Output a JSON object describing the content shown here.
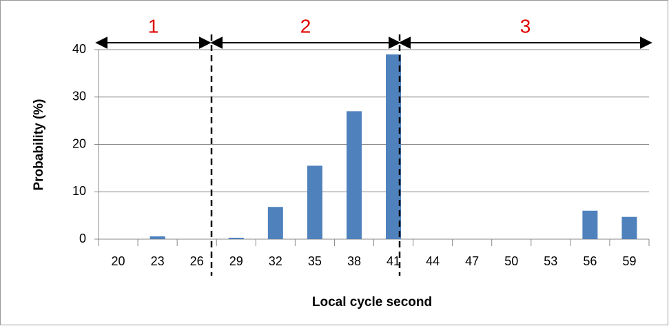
{
  "chart_data": {
    "type": "bar",
    "x_label": "Local cycle second",
    "y_label": "Probability (%)",
    "categories": [
      "20",
      "23",
      "26",
      "29",
      "32",
      "35",
      "38",
      "41",
      "44",
      "47",
      "50",
      "53",
      "56",
      "59"
    ],
    "values": [
      0,
      0.6,
      0,
      0.3,
      6.8,
      15.5,
      27,
      39,
      0,
      0,
      0,
      0,
      6,
      4.7
    ],
    "color": "#4f81bd",
    "ylim": [
      0,
      40
    ],
    "yticks": [
      0,
      10,
      20,
      30,
      40
    ],
    "grid": true,
    "annotations": [
      "1",
      "2",
      "3"
    ]
  }
}
